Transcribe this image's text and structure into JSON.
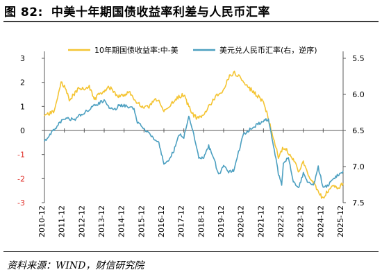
{
  "figure": {
    "label": "图 82:",
    "title": "中美十年期国债收益率利差与人民币汇率"
  },
  "source": "资料来源：WIND，财信研究院",
  "colors": {
    "spread": "#f4c432",
    "fx": "#4b9fc0",
    "axis": "#595959",
    "negative_tick": "#e0312b"
  },
  "chart_data": {
    "type": "line",
    "x_ticks": [
      "2010-12",
      "2011-12",
      "2012-12",
      "2013-12",
      "2014-12",
      "2015-12",
      "2016-12",
      "2017-12",
      "2018-12",
      "2019-12",
      "2020-12",
      "2021-12",
      "2022-12",
      "2023-12",
      "2024-12",
      "2025-12"
    ],
    "y_left": {
      "ticks": [
        3,
        2,
        1,
        0,
        -1,
        -2,
        -3
      ],
      "range": [
        -3,
        3
      ]
    },
    "y_right": {
      "ticks": [
        5.5,
        6.0,
        6.5,
        7.0,
        7.5
      ],
      "range": [
        5.5,
        7.5
      ],
      "inverted": true
    },
    "legend": {
      "position": "top"
    },
    "series": [
      {
        "name": "10年期国债收益率:中-美",
        "axis": "left",
        "color": "#f4c432",
        "points": [
          [
            "2010-12",
            0.6
          ],
          [
            "2011-03",
            0.7
          ],
          [
            "2011-06",
            0.8
          ],
          [
            "2011-08",
            1.4
          ],
          [
            "2011-10",
            2.0
          ],
          [
            "2011-12",
            1.8
          ],
          [
            "2012-03",
            1.3
          ],
          [
            "2012-06",
            1.5
          ],
          [
            "2012-09",
            1.8
          ],
          [
            "2012-12",
            1.7
          ],
          [
            "2013-03",
            1.8
          ],
          [
            "2013-06",
            1.3
          ],
          [
            "2013-09",
            1.5
          ],
          [
            "2013-12",
            1.6
          ],
          [
            "2014-03",
            1.8
          ],
          [
            "2014-06",
            1.6
          ],
          [
            "2014-09",
            1.4
          ],
          [
            "2014-12",
            1.5
          ],
          [
            "2015-03",
            1.6
          ],
          [
            "2015-06",
            1.3
          ],
          [
            "2015-09",
            1.1
          ],
          [
            "2015-12",
            0.9
          ],
          [
            "2016-03",
            1.0
          ],
          [
            "2016-06",
            1.3
          ],
          [
            "2016-09",
            1.2
          ],
          [
            "2016-12",
            0.8
          ],
          [
            "2017-03",
            1.0
          ],
          [
            "2017-06",
            1.2
          ],
          [
            "2017-09",
            1.4
          ],
          [
            "2017-12",
            1.5
          ],
          [
            "2018-03",
            1.0
          ],
          [
            "2018-06",
            0.6
          ],
          [
            "2018-09",
            0.5
          ],
          [
            "2018-12",
            0.6
          ],
          [
            "2019-03",
            1.0
          ],
          [
            "2019-06",
            1.3
          ],
          [
            "2019-09",
            1.5
          ],
          [
            "2019-12",
            1.7
          ],
          [
            "2020-03",
            2.2
          ],
          [
            "2020-06",
            2.4
          ],
          [
            "2020-09",
            2.3
          ],
          [
            "2020-12",
            2.0
          ],
          [
            "2021-03",
            1.8
          ],
          [
            "2021-06",
            1.6
          ],
          [
            "2021-09",
            1.4
          ],
          [
            "2021-12",
            1.2
          ],
          [
            "2022-03",
            0.5
          ],
          [
            "2022-06",
            -0.3
          ],
          [
            "2022-09",
            -1.1
          ],
          [
            "2022-12",
            -0.7
          ],
          [
            "2023-03",
            -0.9
          ],
          [
            "2023-06",
            -1.2
          ],
          [
            "2023-09",
            -1.7
          ],
          [
            "2023-12",
            -1.3
          ],
          [
            "2024-03",
            -1.9
          ],
          [
            "2024-06",
            -2.1
          ],
          [
            "2024-09",
            -2.6
          ],
          [
            "2024-12",
            -2.8
          ],
          [
            "2025-03",
            -2.5
          ],
          [
            "2025-06",
            -2.3
          ],
          [
            "2025-09",
            -2.4
          ],
          [
            "2025-12",
            -2.2
          ]
        ]
      },
      {
        "name": "美元兑人民币汇率(右，逆序)",
        "axis": "right",
        "color": "#4b9fc0",
        "points": [
          [
            "2010-12",
            6.65
          ],
          [
            "2011-06",
            6.48
          ],
          [
            "2011-12",
            6.33
          ],
          [
            "2012-06",
            6.35
          ],
          [
            "2012-12",
            6.25
          ],
          [
            "2013-06",
            6.16
          ],
          [
            "2013-12",
            6.08
          ],
          [
            "2014-03",
            6.18
          ],
          [
            "2014-06",
            6.22
          ],
          [
            "2014-09",
            6.15
          ],
          [
            "2014-12",
            6.15
          ],
          [
            "2015-06",
            6.2
          ],
          [
            "2015-08",
            6.38
          ],
          [
            "2015-12",
            6.48
          ],
          [
            "2016-06",
            6.62
          ],
          [
            "2016-09",
            6.68
          ],
          [
            "2016-12",
            6.95
          ],
          [
            "2017-03",
            6.9
          ],
          [
            "2017-06",
            6.78
          ],
          [
            "2017-09",
            6.55
          ],
          [
            "2017-12",
            6.6
          ],
          [
            "2018-03",
            6.3
          ],
          [
            "2018-06",
            6.55
          ],
          [
            "2018-09",
            6.88
          ],
          [
            "2018-12",
            6.88
          ],
          [
            "2019-03",
            6.72
          ],
          [
            "2019-06",
            6.88
          ],
          [
            "2019-09",
            7.12
          ],
          [
            "2019-12",
            6.98
          ],
          [
            "2020-03",
            7.08
          ],
          [
            "2020-06",
            7.05
          ],
          [
            "2020-09",
            6.8
          ],
          [
            "2020-12",
            6.55
          ],
          [
            "2021-06",
            6.45
          ],
          [
            "2021-12",
            6.37
          ],
          [
            "2022-03",
            6.34
          ],
          [
            "2022-06",
            6.7
          ],
          [
            "2022-09",
            7.1
          ],
          [
            "2022-11",
            7.24
          ],
          [
            "2022-12",
            6.95
          ],
          [
            "2023-03",
            6.88
          ],
          [
            "2023-06",
            7.22
          ],
          [
            "2023-09",
            7.3
          ],
          [
            "2023-12",
            7.1
          ],
          [
            "2024-03",
            7.23
          ],
          [
            "2024-06",
            7.27
          ],
          [
            "2024-09",
            7.01
          ],
          [
            "2024-12",
            7.29
          ],
          [
            "2025-03",
            7.26
          ],
          [
            "2025-06",
            7.17
          ],
          [
            "2025-09",
            7.12
          ],
          [
            "2025-12",
            7.06
          ]
        ]
      }
    ]
  }
}
